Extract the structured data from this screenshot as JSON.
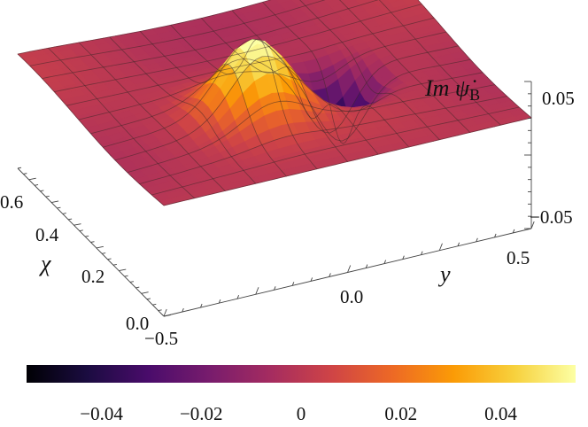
{
  "chart_data": {
    "type": "surface3d",
    "title": "",
    "zlabel_main": "Im ψ̇",
    "zlabel_sub": "B",
    "xlabel": "χ",
    "ylabel": "y",
    "x_ticks": [
      "0.0",
      "0.2",
      "0.4",
      "0.6"
    ],
    "y_ticks": [
      "−0.5",
      "0.0",
      "0.5"
    ],
    "z_ticks": [
      "0.05",
      "−0.05"
    ],
    "xlim": [
      0,
      0.65
    ],
    "ylim": [
      -0.5,
      0.5
    ],
    "zlim": [
      -0.06,
      0.06
    ],
    "surface": {
      "peak": {
        "chi": 0.25,
        "y": -0.1,
        "value": 0.055
      },
      "trough": {
        "chi": 0.3,
        "y": 0.15,
        "value": -0.055
      }
    },
    "colorbar": {
      "min": -0.055,
      "max": 0.055,
      "ticks": [
        "−0.04",
        "−0.02",
        "0",
        "0.02",
        "0.04"
      ],
      "tick_values": [
        -0.04,
        -0.02,
        0,
        0.02,
        0.04
      ],
      "colormap": [
        "#000004",
        "#1b0c41",
        "#4a0c6b",
        "#781c6d",
        "#a52c60",
        "#cf4446",
        "#ed6925",
        "#fb9b06",
        "#f7d13d",
        "#fcffa4"
      ]
    }
  }
}
